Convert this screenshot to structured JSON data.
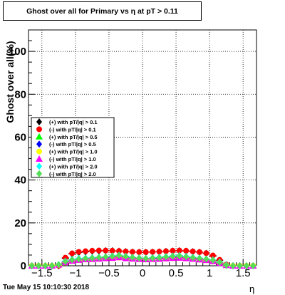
{
  "header": {
    "title": "Ghost over all for Primary vs   η at pT > 0.11"
  },
  "footer": {
    "date": "Tue May 15 10:10:30 2018",
    "x_title": "η"
  },
  "chart_data": {
    "type": "scatter",
    "title": "Ghost over all for Primary vs   η at pT > 0.11",
    "xlabel": "η",
    "ylabel": "Ghost over all(%)",
    "xlim": [
      -1.7,
      1.7
    ],
    "ylim": [
      0,
      110
    ],
    "x_ticks": [
      -1.5,
      -1,
      -0.5,
      0,
      0.5,
      1,
      1.5
    ],
    "x_tick_labels": [
      "−1.5",
      "−1",
      "−0.5",
      "0",
      "0.5",
      "1",
      "1.5"
    ],
    "y_ticks": [
      0,
      20,
      40,
      60,
      80,
      100
    ],
    "y_tick_labels": [
      "0",
      "20",
      "40",
      "60",
      "80",
      "100"
    ],
    "grid": true,
    "legend_position": "left-middle",
    "x": [
      -1.65,
      -1.55,
      -1.45,
      -1.35,
      -1.25,
      -1.15,
      -1.05,
      -0.95,
      -0.85,
      -0.75,
      -0.65,
      -0.55,
      -0.45,
      -0.35,
      -0.25,
      -0.15,
      -0.05,
      0.05,
      0.15,
      0.25,
      0.35,
      0.45,
      0.55,
      0.65,
      0.75,
      0.85,
      0.95,
      1.05,
      1.15,
      1.25,
      1.35,
      1.45,
      1.55,
      1.65
    ],
    "series": [
      {
        "name": "(+) with pT/|q| > 0.1",
        "color": "#000000",
        "marker": "diamond",
        "values": [
          0,
          0,
          0,
          0,
          0,
          3.5,
          5.5,
          6.2,
          6.5,
          6.8,
          6.9,
          7.0,
          7.0,
          6.8,
          6.6,
          6.4,
          6.3,
          6.3,
          6.4,
          6.5,
          6.7,
          6.9,
          7.0,
          6.8,
          6.6,
          6.3,
          5.8,
          4.5,
          2.5,
          0.5,
          0,
          0,
          0,
          0
        ]
      },
      {
        "name": "(-) with pT/|q| > 0.1",
        "color": "#ff0000",
        "marker": "circle",
        "values": [
          0,
          0,
          0,
          0,
          0,
          3.8,
          5.8,
          6.5,
          6.8,
          7.0,
          7.1,
          7.1,
          7.0,
          6.9,
          6.7,
          6.5,
          6.4,
          6.4,
          6.5,
          6.6,
          6.8,
          7.0,
          7.1,
          7.0,
          6.7,
          6.4,
          5.9,
          4.8,
          2.8,
          0.6,
          0,
          0,
          0,
          0
        ]
      },
      {
        "name": "(+) with pT/|q| > 0.5",
        "color": "#00ff00",
        "marker": "triangle",
        "values": [
          0,
          0,
          0,
          0,
          0.5,
          2.0,
          2.8,
          3.2,
          3.5,
          3.6,
          3.8,
          4.0,
          4.2,
          4.5,
          4.0,
          3.8,
          3.5,
          3.3,
          3.5,
          3.6,
          3.8,
          4.0,
          4.2,
          3.9,
          3.7,
          3.4,
          3.0,
          2.5,
          1.5,
          0.3,
          0,
          0,
          0,
          0
        ]
      },
      {
        "name": "(-) with pT/|q| > 0.5",
        "color": "#0000ff",
        "marker": "diamond",
        "values": [
          0,
          0,
          0,
          0,
          0.4,
          1.8,
          2.6,
          3.0,
          3.3,
          3.4,
          3.6,
          3.8,
          4.0,
          4.2,
          3.9,
          3.6,
          3.4,
          3.2,
          3.4,
          3.5,
          3.7,
          3.9,
          4.0,
          3.8,
          3.5,
          3.2,
          2.9,
          2.3,
          1.3,
          0.2,
          0,
          0,
          0,
          0
        ]
      },
      {
        "name": "(+) with pT/|q| > 1.0",
        "color": "#ffff00",
        "marker": "circle",
        "values": [
          0,
          0,
          0,
          0,
          0.3,
          1.5,
          2.2,
          2.6,
          2.9,
          3.0,
          3.2,
          3.4,
          3.5,
          3.8,
          3.4,
          3.2,
          3.0,
          2.9,
          3.0,
          3.1,
          3.3,
          3.5,
          3.6,
          3.4,
          3.1,
          2.8,
          2.5,
          2.0,
          1.2,
          0.2,
          0,
          0,
          0,
          0
        ]
      },
      {
        "name": "(-) with pT/|q| > 1.0",
        "color": "#ff00ff",
        "marker": "triangle",
        "values": [
          0,
          0,
          0,
          0,
          0.5,
          1.6,
          2.3,
          2.7,
          3.0,
          3.1,
          3.3,
          3.5,
          3.6,
          3.9,
          3.5,
          3.3,
          3.1,
          3.0,
          3.1,
          3.2,
          3.4,
          3.6,
          3.7,
          3.5,
          3.2,
          2.9,
          2.6,
          2.1,
          1.3,
          0.3,
          0,
          0,
          0,
          0
        ]
      },
      {
        "name": "(+) with pT/|q| > 2.0",
        "color": "#00ffff",
        "marker": "diamond",
        "values": [
          0,
          0,
          0,
          0,
          0.6,
          2.2,
          3.0,
          3.4,
          3.6,
          3.8,
          4.0,
          4.2,
          4.6,
          5.0,
          4.5,
          4.0,
          3.7,
          3.5,
          3.8,
          4.0,
          4.3,
          4.6,
          4.8,
          4.4,
          4.0,
          3.6,
          3.2,
          2.8,
          1.8,
          0.4,
          0,
          0,
          0,
          0
        ]
      },
      {
        "name": "(-) with pT/|q| > 2.0",
        "color": "#55dd55",
        "marker": "diamond",
        "values": [
          0,
          0,
          0,
          0,
          0.5,
          2.0,
          2.8,
          3.1,
          3.4,
          3.6,
          3.9,
          4.1,
          4.4,
          4.8,
          4.3,
          3.9,
          3.6,
          3.4,
          3.6,
          3.8,
          4.1,
          4.4,
          4.6,
          4.2,
          3.8,
          3.5,
          3.1,
          2.6,
          1.6,
          0.3,
          0,
          0,
          0,
          0
        ]
      }
    ]
  }
}
